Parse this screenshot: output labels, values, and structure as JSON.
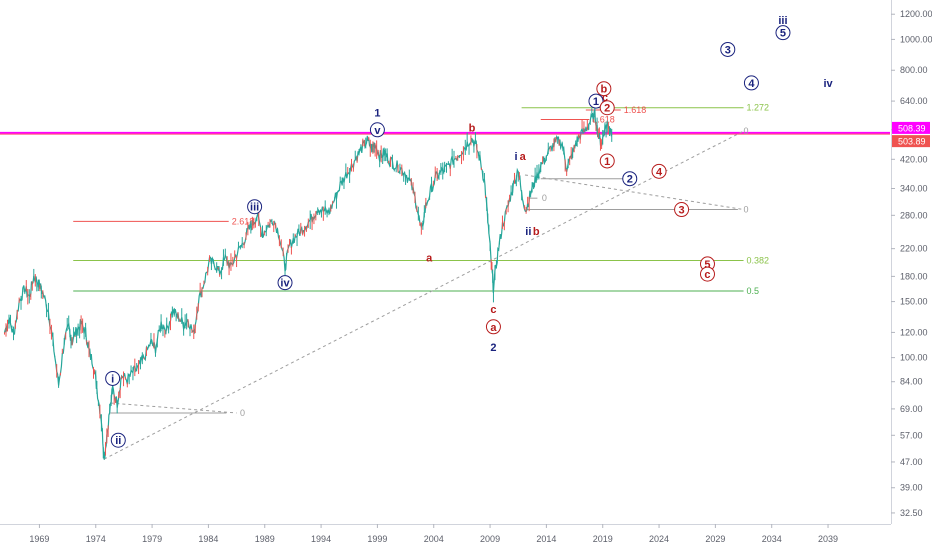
{
  "chart_data": {
    "type": "line",
    "title": "",
    "xlabel": "",
    "ylabel": "",
    "scale": "log",
    "ylim": [
      30,
      1330
    ],
    "xlim": [
      1965.5,
      2044.5
    ],
    "grid": false,
    "x_ticks": [
      "1969",
      "1974",
      "1979",
      "1984",
      "1989",
      "1994",
      "1999",
      "2004",
      "2009",
      "2014",
      "2019",
      "2024",
      "2029",
      "2034",
      "2039"
    ],
    "y_ticks": [
      "1200.00",
      "1000.00",
      "800.00",
      "640.00",
      "520.00",
      "420.00",
      "340.00",
      "280.00",
      "220.00",
      "180.00",
      "150.00",
      "120.00",
      "100.00",
      "84.00",
      "69.00",
      "57.00",
      "47.00",
      "39.00",
      "32.50"
    ],
    "series": [
      {
        "values": [
          {
            "x": 1965.9,
            "y": 120
          },
          {
            "x": 1966.3,
            "y": 132
          },
          {
            "x": 1966.7,
            "y": 118
          },
          {
            "x": 1967.2,
            "y": 150
          },
          {
            "x": 1967.7,
            "y": 165
          },
          {
            "x": 1968.1,
            "y": 155
          },
          {
            "x": 1968.5,
            "y": 180
          },
          {
            "x": 1968.9,
            "y": 172
          },
          {
            "x": 1969.3,
            "y": 160
          },
          {
            "x": 1969.8,
            "y": 140
          },
          {
            "x": 1970.2,
            "y": 112
          },
          {
            "x": 1970.7,
            "y": 82
          },
          {
            "x": 1971.2,
            "y": 112
          },
          {
            "x": 1971.6,
            "y": 125
          },
          {
            "x": 1971.9,
            "y": 112
          },
          {
            "x": 1972.3,
            "y": 122
          },
          {
            "x": 1972.7,
            "y": 128
          },
          {
            "x": 1973.1,
            "y": 120
          },
          {
            "x": 1973.4,
            "y": 105
          },
          {
            "x": 1973.8,
            "y": 95
          },
          {
            "x": 1974.1,
            "y": 80
          },
          {
            "x": 1974.5,
            "y": 64
          },
          {
            "x": 1974.75,
            "y": 48
          },
          {
            "x": 1975.1,
            "y": 62
          },
          {
            "x": 1975.5,
            "y": 80
          },
          {
            "x": 1975.9,
            "y": 72
          },
          {
            "x": 1976.3,
            "y": 88
          },
          {
            "x": 1976.8,
            "y": 85
          },
          {
            "x": 1977.3,
            "y": 90
          },
          {
            "x": 1977.8,
            "y": 93
          },
          {
            "x": 1978.3,
            "y": 100
          },
          {
            "x": 1978.9,
            "y": 112
          },
          {
            "x": 1979.3,
            "y": 107
          },
          {
            "x": 1979.8,
            "y": 128
          },
          {
            "x": 1980.3,
            "y": 122
          },
          {
            "x": 1980.8,
            "y": 140
          },
          {
            "x": 1981.3,
            "y": 135
          },
          {
            "x": 1981.8,
            "y": 127
          },
          {
            "x": 1982.2,
            "y": 132
          },
          {
            "x": 1982.7,
            "y": 118
          },
          {
            "x": 1983.1,
            "y": 150
          },
          {
            "x": 1983.6,
            "y": 172
          },
          {
            "x": 1984.1,
            "y": 200
          },
          {
            "x": 1984.6,
            "y": 196
          },
          {
            "x": 1985.0,
            "y": 185
          },
          {
            "x": 1985.5,
            "y": 205
          },
          {
            "x": 1986.0,
            "y": 192
          },
          {
            "x": 1986.5,
            "y": 212
          },
          {
            "x": 1987.0,
            "y": 226
          },
          {
            "x": 1987.5,
            "y": 250
          },
          {
            "x": 1987.9,
            "y": 262
          },
          {
            "x": 1988.3,
            "y": 280
          },
          {
            "x": 1988.8,
            "y": 245
          },
          {
            "x": 1989.3,
            "y": 260
          },
          {
            "x": 1989.8,
            "y": 272
          },
          {
            "x": 1990.3,
            "y": 242
          },
          {
            "x": 1990.8,
            "y": 192
          },
          {
            "x": 1991.2,
            "y": 225
          },
          {
            "x": 1991.7,
            "y": 240
          },
          {
            "x": 1992.2,
            "y": 250
          },
          {
            "x": 1992.7,
            "y": 262
          },
          {
            "x": 1993.2,
            "y": 275
          },
          {
            "x": 1993.7,
            "y": 295
          },
          {
            "x": 1994.2,
            "y": 290
          },
          {
            "x": 1994.7,
            "y": 285
          },
          {
            "x": 1995.2,
            "y": 315
          },
          {
            "x": 1995.7,
            "y": 348
          },
          {
            "x": 1996.2,
            "y": 375
          },
          {
            "x": 1996.7,
            "y": 400
          },
          {
            "x": 1997.2,
            "y": 430
          },
          {
            "x": 1997.7,
            "y": 460
          },
          {
            "x": 1998.1,
            "y": 480
          },
          {
            "x": 1998.5,
            "y": 455
          },
          {
            "x": 1998.8,
            "y": 470
          },
          {
            "x": 1999.2,
            "y": 430
          },
          {
            "x": 1999.6,
            "y": 440
          },
          {
            "x": 2000.0,
            "y": 420
          },
          {
            "x": 2000.5,
            "y": 405
          },
          {
            "x": 2001.0,
            "y": 395
          },
          {
            "x": 2001.5,
            "y": 380
          },
          {
            "x": 2002.0,
            "y": 350
          },
          {
            "x": 2002.5,
            "y": 300
          },
          {
            "x": 2002.9,
            "y": 248
          },
          {
            "x": 2003.3,
            "y": 300
          },
          {
            "x": 2003.8,
            "y": 340
          },
          {
            "x": 2004.3,
            "y": 375
          },
          {
            "x": 2004.8,
            "y": 385
          },
          {
            "x": 2005.3,
            "y": 400
          },
          {
            "x": 2005.8,
            "y": 420
          },
          {
            "x": 2006.3,
            "y": 440
          },
          {
            "x": 2006.8,
            "y": 460
          },
          {
            "x": 2007.3,
            "y": 490
          },
          {
            "x": 2007.7,
            "y": 470
          },
          {
            "x": 2008.1,
            "y": 420
          },
          {
            "x": 2008.5,
            "y": 360
          },
          {
            "x": 2008.8,
            "y": 270
          },
          {
            "x": 2009.1,
            "y": 200
          },
          {
            "x": 2009.3,
            "y": 165
          },
          {
            "x": 2009.7,
            "y": 215
          },
          {
            "x": 2010.1,
            "y": 260
          },
          {
            "x": 2010.6,
            "y": 300
          },
          {
            "x": 2011.0,
            "y": 340
          },
          {
            "x": 2011.5,
            "y": 395
          },
          {
            "x": 2011.8,
            "y": 325
          },
          {
            "x": 2012.2,
            "y": 290
          },
          {
            "x": 2012.6,
            "y": 330
          },
          {
            "x": 2013.0,
            "y": 360
          },
          {
            "x": 2013.5,
            "y": 400
          },
          {
            "x": 2014.0,
            "y": 430
          },
          {
            "x": 2014.5,
            "y": 460
          },
          {
            "x": 2015.0,
            "y": 480
          },
          {
            "x": 2015.4,
            "y": 470
          },
          {
            "x": 2015.8,
            "y": 395
          },
          {
            "x": 2016.2,
            "y": 425
          },
          {
            "x": 2016.6,
            "y": 470
          },
          {
            "x": 2017.0,
            "y": 500
          },
          {
            "x": 2017.5,
            "y": 520
          },
          {
            "x": 2017.9,
            "y": 555
          },
          {
            "x": 2018.3,
            "y": 580
          },
          {
            "x": 2018.6,
            "y": 500
          },
          {
            "x": 2018.9,
            "y": 470
          },
          {
            "x": 2019.2,
            "y": 530
          },
          {
            "x": 2019.5,
            "y": 545
          },
          {
            "x": 2019.8,
            "y": 504
          }
        ]
      }
    ],
    "horizontal_lines": [
      {
        "label": "",
        "price": 508.39,
        "x_from": 1965.5,
        "x_to": 2044.5,
        "color": "#ff00ff"
      },
      {
        "label": "",
        "price": 503.89,
        "x_from": 1965.5,
        "x_to": 2044.5,
        "color": "#ff4d6d"
      },
      {
        "label": "1.272",
        "price": 610,
        "x_from": 2011.8,
        "x_to": 2031.5,
        "color": "#8bc34a"
      },
      {
        "label": "1.618",
        "price": 600,
        "x_from": 2017.5,
        "x_to": 2020.6,
        "color": "#ef5350"
      },
      {
        "label": "1.618",
        "price": 560,
        "x_from": 2013.5,
        "x_to": 2017.8,
        "color": "#ef5350"
      },
      {
        "label": "2.618",
        "price": 268,
        "x_from": 1972.0,
        "x_to": 1985.8,
        "color": "#ef5350"
      },
      {
        "label": "0.382",
        "price": 202,
        "x_from": 1972.0,
        "x_to": 2031.5,
        "color": "#8bc34a"
      },
      {
        "label": "0.5",
        "price": 162,
        "x_from": 1972.0,
        "x_to": 2031.5,
        "color": "#4caf50"
      }
    ],
    "trend_lines": [
      {
        "from": {
          "x": 1974.75,
          "y": 48
        },
        "to": {
          "x": 2031.5,
          "y": 515
        },
        "color": "#9e9e9e"
      },
      {
        "from": {
          "x": 1975.3,
          "y": 72
        },
        "to": {
          "x": 1986.5,
          "y": 67
        },
        "color": "#9e9e9e"
      },
      {
        "from": {
          "x": 2012.1,
          "y": 375
        },
        "to": {
          "x": 2031.5,
          "y": 292
        },
        "color": "#9e9e9e"
      }
    ],
    "fib_markers": [
      {
        "label": "0",
        "x": 1986.8,
        "y": 67
      },
      {
        "label": "0",
        "x": 2013.6,
        "y": 317
      },
      {
        "label": "0",
        "x": 2021.5,
        "y": 365
      },
      {
        "label": "0",
        "x": 2031.5,
        "y": 292
      },
      {
        "label": "0",
        "x": 2031.5,
        "y": 515
      }
    ],
    "fib_marker_lines": [
      {
        "x_from": 1975.3,
        "x_to": 1985.6,
        "y": 67
      },
      {
        "x_from": 2012.4,
        "x_to": 2013.2,
        "y": 317
      },
      {
        "x_from": 2013.5,
        "x_to": 2021.0,
        "y": 365
      },
      {
        "x_from": 2012.2,
        "x_to": 2031.0,
        "y": 292
      }
    ],
    "annotations": [
      {
        "text": "1",
        "x": 1999.0,
        "y": 590,
        "style": "plain",
        "color": "#1a237e",
        "size": 15
      },
      {
        "text": "v",
        "x": 1999.0,
        "y": 520,
        "style": "circle",
        "color": "#1a237e"
      },
      {
        "text": "iii",
        "x": 1988.1,
        "y": 298,
        "style": "circle",
        "color": "#1a237e"
      },
      {
        "text": "iv",
        "x": 1990.8,
        "y": 172,
        "style": "circle",
        "color": "#1a237e"
      },
      {
        "text": "i",
        "x": 1975.5,
        "y": 86,
        "style": "circle",
        "color": "#1a237e"
      },
      {
        "text": "ii",
        "x": 1976.0,
        "y": 55,
        "style": "circle",
        "color": "#1a237e"
      },
      {
        "text": "a",
        "x": 2003.6,
        "y": 206,
        "style": "plain",
        "color": "#b71c1c"
      },
      {
        "text": "b",
        "x": 2007.4,
        "y": 528,
        "style": "plain",
        "color": "#b71c1c"
      },
      {
        "text": "c",
        "x": 2009.3,
        "y": 142,
        "style": "plain",
        "color": "#b71c1c"
      },
      {
        "text": "a",
        "x": 2009.3,
        "y": 125,
        "style": "circle",
        "color": "#b71c1c"
      },
      {
        "text": "2",
        "x": 2009.3,
        "y": 108,
        "style": "plain",
        "color": "#1a237e",
        "size": 15
      },
      {
        "text": "i",
        "x": 2011.3,
        "y": 430,
        "style": "plain",
        "color": "#1a237e"
      },
      {
        "text": "a",
        "x": 2011.9,
        "y": 430,
        "style": "plain",
        "color": "#b71c1c"
      },
      {
        "text": "ii",
        "x": 2012.4,
        "y": 250,
        "style": "plain",
        "color": "#1a237e"
      },
      {
        "text": "b",
        "x": 2013.1,
        "y": 250,
        "style": "plain",
        "color": "#b71c1c"
      },
      {
        "text": "b",
        "x": 2019.1,
        "y": 700,
        "style": "circle",
        "color": "#b71c1c"
      },
      {
        "text": "c",
        "x": 2019.2,
        "y": 660,
        "style": "plain",
        "color": "#b71c1c"
      },
      {
        "text": "1",
        "x": 2018.4,
        "y": 640,
        "style": "circle",
        "color": "#1a237e"
      },
      {
        "text": "2",
        "x": 2019.4,
        "y": 610,
        "style": "circle",
        "color": "#b71c1c"
      },
      {
        "text": "1",
        "x": 2019.4,
        "y": 415,
        "style": "circle",
        "color": "#b71c1c"
      },
      {
        "text": "2",
        "x": 2021.4,
        "y": 365,
        "style": "circle",
        "color": "#1a237e"
      },
      {
        "text": "4",
        "x": 2024.0,
        "y": 385,
        "style": "circle",
        "color": "#b71c1c"
      },
      {
        "text": "3",
        "x": 2026.0,
        "y": 292,
        "style": "circle",
        "color": "#b71c1c"
      },
      {
        "text": "5",
        "x": 2028.3,
        "y": 197,
        "style": "circle",
        "color": "#b71c1c"
      },
      {
        "text": "c",
        "x": 2028.3,
        "y": 183,
        "style": "circle",
        "color": "#b71c1c"
      },
      {
        "text": "3",
        "x": 2030.1,
        "y": 930,
        "style": "circle",
        "color": "#1a237e"
      },
      {
        "text": "4",
        "x": 2032.2,
        "y": 730,
        "style": "circle",
        "color": "#1a237e"
      },
      {
        "text": "iii",
        "x": 2035.0,
        "y": 1150,
        "style": "plain",
        "color": "#1a237e"
      },
      {
        "text": "5",
        "x": 2035.0,
        "y": 1050,
        "style": "circle",
        "color": "#1a237e"
      },
      {
        "text": "iv",
        "x": 2039.0,
        "y": 730,
        "style": "plain",
        "color": "#1a237e"
      }
    ],
    "price_badges": [
      {
        "label": "508.39",
        "price": 508.39,
        "color": "#ff00ff"
      },
      {
        "label": "503.89",
        "price": 503.89,
        "color": "#ef5350"
      }
    ]
  }
}
